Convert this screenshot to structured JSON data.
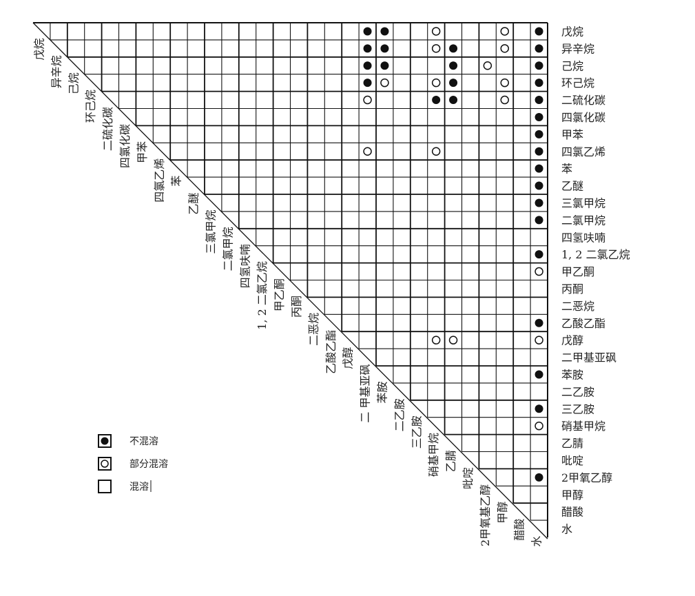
{
  "row_labels": [
    "戊烷",
    "异辛烷",
    "己烷",
    "环己烷",
    "二硫化碳",
    "四氯化碳",
    "甲苯",
    "四氯乙烯",
    "苯",
    "乙醚",
    "三氯甲烷",
    "二氯甲烷",
    "四氢呋喃",
    "1, 2 二氯乙烷",
    "甲乙酮",
    "丙酮",
    "二恶烷",
    "乙酸乙酯",
    "戊醇",
    "二甲基亚砜",
    "苯胺",
    "二乙胺",
    "三乙胺",
    "硝基甲烷",
    "乙腈",
    "吡啶",
    "2甲氧乙醇",
    "甲醇",
    "醋酸",
    "水"
  ],
  "column_labels": [
    "戊烷",
    "异辛烷",
    "己烷",
    "环己烷",
    "二硫化碳",
    "四氯化碳",
    "甲苯",
    "四氯乙烯",
    "苯",
    "乙醚",
    "三氯甲烷",
    "二氯甲烷",
    "四氢呋喃",
    "1, 2 二氯乙烷",
    "甲乙酮",
    "丙酮",
    "二恶烷",
    "乙酸乙酯",
    "戊醇",
    "二 甲基亚砜",
    "苯胺",
    "二乙胺",
    "三乙胺",
    "硝基甲烷",
    "乙腈",
    "吡啶",
    "2甲氧基乙醇",
    "甲醇",
    "醋酸",
    "水"
  ],
  "cells": [
    {
      "row": 0,
      "col": 19,
      "type": "immiscible"
    },
    {
      "row": 0,
      "col": 20,
      "type": "immiscible"
    },
    {
      "row": 0,
      "col": 23,
      "type": "partial"
    },
    {
      "row": 0,
      "col": 27,
      "type": "partial"
    },
    {
      "row": 0,
      "col": 29,
      "type": "immiscible"
    },
    {
      "row": 1,
      "col": 19,
      "type": "immiscible"
    },
    {
      "row": 1,
      "col": 20,
      "type": "immiscible"
    },
    {
      "row": 1,
      "col": 23,
      "type": "partial"
    },
    {
      "row": 1,
      "col": 24,
      "type": "immiscible"
    },
    {
      "row": 1,
      "col": 27,
      "type": "partial"
    },
    {
      "row": 1,
      "col": 29,
      "type": "immiscible"
    },
    {
      "row": 2,
      "col": 19,
      "type": "immiscible"
    },
    {
      "row": 2,
      "col": 20,
      "type": "immiscible"
    },
    {
      "row": 2,
      "col": 24,
      "type": "immiscible"
    },
    {
      "row": 2,
      "col": 26,
      "type": "partial"
    },
    {
      "row": 2,
      "col": 29,
      "type": "immiscible"
    },
    {
      "row": 3,
      "col": 19,
      "type": "immiscible"
    },
    {
      "row": 3,
      "col": 20,
      "type": "partial"
    },
    {
      "row": 3,
      "col": 23,
      "type": "partial"
    },
    {
      "row": 3,
      "col": 24,
      "type": "immiscible"
    },
    {
      "row": 3,
      "col": 27,
      "type": "partial"
    },
    {
      "row": 3,
      "col": 29,
      "type": "immiscible"
    },
    {
      "row": 4,
      "col": 19,
      "type": "partial"
    },
    {
      "row": 4,
      "col": 23,
      "type": "immiscible"
    },
    {
      "row": 4,
      "col": 24,
      "type": "immiscible"
    },
    {
      "row": 4,
      "col": 27,
      "type": "partial"
    },
    {
      "row": 4,
      "col": 29,
      "type": "immiscible"
    },
    {
      "row": 5,
      "col": 29,
      "type": "immiscible"
    },
    {
      "row": 6,
      "col": 29,
      "type": "immiscible"
    },
    {
      "row": 7,
      "col": 19,
      "type": "partial"
    },
    {
      "row": 7,
      "col": 23,
      "type": "partial"
    },
    {
      "row": 7,
      "col": 29,
      "type": "immiscible"
    },
    {
      "row": 8,
      "col": 29,
      "type": "immiscible"
    },
    {
      "row": 9,
      "col": 29,
      "type": "immiscible"
    },
    {
      "row": 10,
      "col": 29,
      "type": "immiscible"
    },
    {
      "row": 11,
      "col": 29,
      "type": "immiscible"
    },
    {
      "row": 13,
      "col": 29,
      "type": "immiscible"
    },
    {
      "row": 14,
      "col": 29,
      "type": "partial"
    },
    {
      "row": 17,
      "col": 29,
      "type": "immiscible"
    },
    {
      "row": 18,
      "col": 23,
      "type": "partial"
    },
    {
      "row": 18,
      "col": 24,
      "type": "partial"
    },
    {
      "row": 18,
      "col": 29,
      "type": "partial"
    },
    {
      "row": 20,
      "col": 29,
      "type": "immiscible"
    },
    {
      "row": 22,
      "col": 29,
      "type": "immiscible"
    },
    {
      "row": 23,
      "col": 29,
      "type": "partial"
    },
    {
      "row": 26,
      "col": 29,
      "type": "immiscible"
    }
  ],
  "legend": [
    {
      "type": "immiscible",
      "label": "不混溶"
    },
    {
      "type": "partial",
      "label": "部分混溶"
    },
    {
      "type": "miscible",
      "label": "混溶"
    }
  ],
  "colors": {
    "line": "#111111",
    "dot": "#111111",
    "text": "#222222"
  }
}
